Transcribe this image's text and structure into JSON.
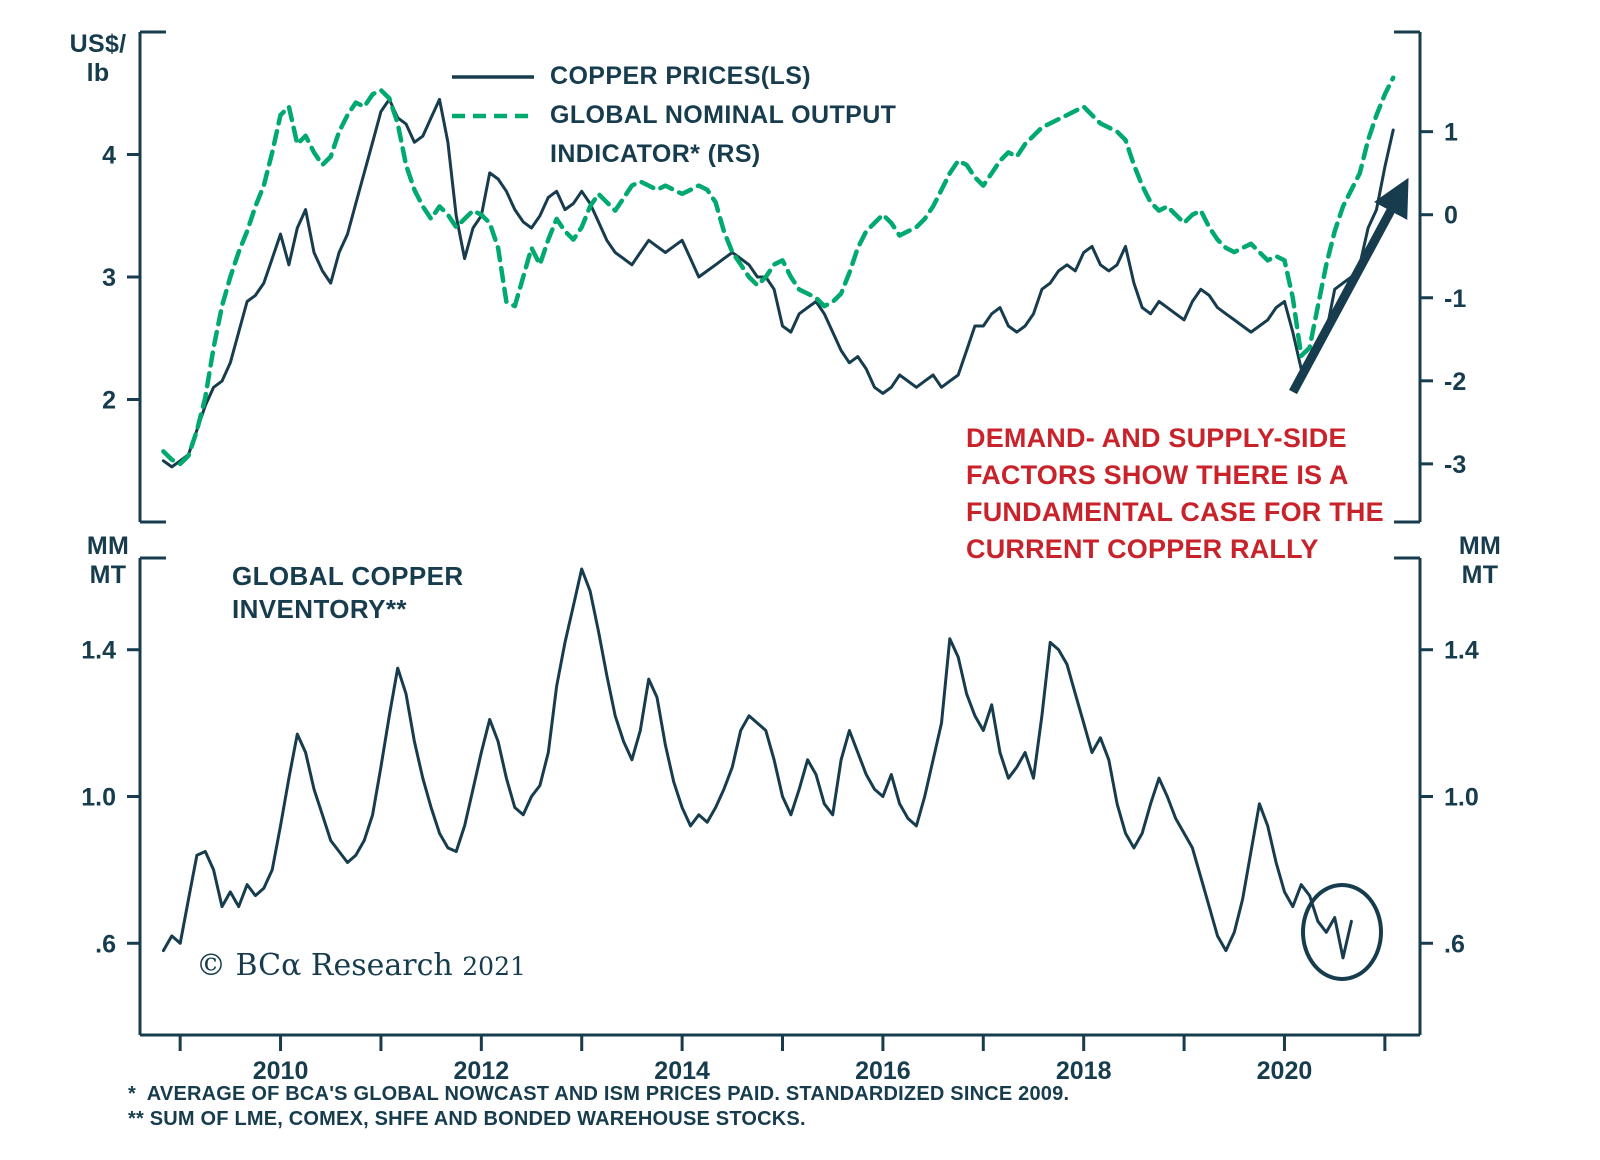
{
  "colors": {
    "navy": "#173c4d",
    "green": "#00a96e",
    "red": "#c8232b"
  },
  "axes_units": {
    "top_left": [
      "US$/",
      "lb"
    ],
    "bottom_left": [
      "MM",
      "MT"
    ],
    "bottom_right": [
      "MM",
      "MT"
    ]
  },
  "legend": {
    "copper": "COPPER PRICES(LS)",
    "output_line1": "GLOBAL NOMINAL OUTPUT",
    "output_line2": "INDICATOR* (RS)"
  },
  "inventory_label": [
    "GLOBAL COPPER",
    "INVENTORY**"
  ],
  "annotation": {
    "lines": [
      "DEMAND- AND SUPPLY-SIDE",
      "FACTORS SHOW THERE IS A",
      "FUNDAMENTAL CASE FOR THE",
      "CURRENT COPPER RALLY"
    ]
  },
  "copyright": {
    "text": "© BCα Research",
    "year": "2021"
  },
  "footnotes": [
    "*  AVERAGE OF BCA'S GLOBAL NOWCAST AND ISM PRICES PAID. STANDARDIZED SINCE 2009.",
    "** SUM OF LME, COMEX, SHFE AND BONDED WAREHOUSE STOCKS."
  ],
  "chart_data": [
    {
      "type": "line",
      "panel": "top",
      "title": "Copper prices vs global nominal output indicator",
      "x_start": 2008.8333,
      "x_step": 0.0833333,
      "xlim": [
        2008.6,
        2021.35
      ],
      "x_ticks": [
        2009,
        2010,
        2011,
        2012,
        2013,
        2014,
        2015,
        2016,
        2017,
        2018,
        2019,
        2020,
        2021
      ],
      "x_labels": [],
      "left_axis": {
        "unit": "US$/lb",
        "ticks": [
          4,
          3,
          2
        ],
        "tick_labels": [
          "4",
          "3",
          "2"
        ],
        "ylim": [
          1.0,
          5.0
        ]
      },
      "right_axis": {
        "unit": "standardized",
        "ticks": [
          1,
          0,
          -1,
          -2,
          -3
        ],
        "tick_labels": [
          "1",
          "0",
          "-1",
          "-2",
          "-3"
        ],
        "ylim": [
          -3.7,
          2.2
        ]
      },
      "series": [
        {
          "name": "COPPER PRICES(LS)",
          "axis": "left",
          "style": "solid",
          "color": "#173c4d",
          "width": 3,
          "values": [
            1.5,
            1.45,
            1.5,
            1.55,
            1.75,
            1.95,
            2.1,
            2.15,
            2.3,
            2.55,
            2.8,
            2.85,
            2.95,
            3.15,
            3.35,
            3.1,
            3.4,
            3.55,
            3.2,
            3.05,
            2.95,
            3.2,
            3.35,
            3.6,
            3.85,
            4.1,
            4.35,
            4.45,
            4.3,
            4.25,
            4.1,
            4.15,
            4.3,
            4.45,
            4.1,
            3.5,
            3.15,
            3.4,
            3.5,
            3.85,
            3.8,
            3.7,
            3.55,
            3.45,
            3.4,
            3.5,
            3.65,
            3.7,
            3.55,
            3.6,
            3.7,
            3.6,
            3.45,
            3.3,
            3.2,
            3.15,
            3.1,
            3.2,
            3.3,
            3.25,
            3.2,
            3.25,
            3.3,
            3.15,
            3.0,
            3.05,
            3.1,
            3.15,
            3.2,
            3.15,
            3.1,
            3.0,
            3.0,
            2.9,
            2.6,
            2.55,
            2.7,
            2.75,
            2.8,
            2.7,
            2.55,
            2.4,
            2.3,
            2.35,
            2.25,
            2.1,
            2.05,
            2.1,
            2.2,
            2.15,
            2.1,
            2.15,
            2.2,
            2.1,
            2.15,
            2.2,
            2.4,
            2.6,
            2.6,
            2.7,
            2.75,
            2.6,
            2.55,
            2.6,
            2.7,
            2.9,
            2.95,
            3.05,
            3.1,
            3.05,
            3.2,
            3.25,
            3.1,
            3.05,
            3.1,
            3.25,
            2.95,
            2.75,
            2.7,
            2.8,
            2.75,
            2.7,
            2.65,
            2.8,
            2.9,
            2.85,
            2.75,
            2.7,
            2.65,
            2.6,
            2.55,
            2.6,
            2.65,
            2.75,
            2.8,
            2.55,
            2.25,
            2.3,
            2.4,
            2.55,
            2.9,
            2.95,
            3.0,
            3.1,
            3.4,
            3.55,
            3.9,
            4.2
          ]
        },
        {
          "name": "GLOBAL NOMINAL OUTPUT INDICATOR* (RS)",
          "axis": "right",
          "style": "dashed",
          "color": "#00a96e",
          "width": 4.5,
          "values": [
            -2.85,
            -2.95,
            -3.0,
            -2.9,
            -2.6,
            -2.2,
            -1.6,
            -1.1,
            -0.75,
            -0.45,
            -0.2,
            0.1,
            0.35,
            0.75,
            1.2,
            1.3,
            0.85,
            0.95,
            0.75,
            0.6,
            0.7,
            1.0,
            1.2,
            1.35,
            1.3,
            1.45,
            1.5,
            1.4,
            1.1,
            0.6,
            0.3,
            0.1,
            -0.05,
            0.1,
            0.0,
            -0.15,
            -0.05,
            0.05,
            0.0,
            -0.1,
            -0.4,
            -1.05,
            -1.1,
            -0.75,
            -0.4,
            -0.6,
            -0.3,
            -0.05,
            -0.2,
            -0.3,
            -0.15,
            0.1,
            0.25,
            0.15,
            0.05,
            0.2,
            0.35,
            0.4,
            0.35,
            0.3,
            0.35,
            0.3,
            0.25,
            0.3,
            0.35,
            0.3,
            0.15,
            -0.2,
            -0.45,
            -0.6,
            -0.75,
            -0.85,
            -0.75,
            -0.6,
            -0.55,
            -0.75,
            -0.9,
            -0.95,
            -1.0,
            -1.1,
            -1.05,
            -0.95,
            -0.7,
            -0.4,
            -0.2,
            -0.1,
            0.0,
            -0.1,
            -0.25,
            -0.2,
            -0.15,
            -0.05,
            0.1,
            0.3,
            0.5,
            0.65,
            0.6,
            0.45,
            0.35,
            0.5,
            0.65,
            0.75,
            0.7,
            0.85,
            0.95,
            1.05,
            1.1,
            1.15,
            1.2,
            1.25,
            1.3,
            1.2,
            1.1,
            1.05,
            1.0,
            0.9,
            0.6,
            0.35,
            0.15,
            0.05,
            0.1,
            0.0,
            -0.1,
            0.0,
            0.05,
            -0.15,
            -0.3,
            -0.4,
            -0.45,
            -0.4,
            -0.35,
            -0.45,
            -0.55,
            -0.5,
            -0.55,
            -1.0,
            -1.7,
            -1.6,
            -1.1,
            -0.6,
            -0.2,
            0.1,
            0.3,
            0.5,
            0.9,
            1.2,
            1.45,
            1.65
          ]
        }
      ]
    },
    {
      "type": "line",
      "panel": "bottom",
      "title": "Global copper inventory",
      "x_start": 2008.8333,
      "x_step": 0.0833333,
      "xlim": [
        2008.6,
        2021.35
      ],
      "x_ticks": [
        2009,
        2010,
        2011,
        2012,
        2013,
        2014,
        2015,
        2016,
        2017,
        2018,
        2019,
        2020,
        2021
      ],
      "x_labels": [
        [
          2010,
          "2010"
        ],
        [
          2012,
          "2012"
        ],
        [
          2014,
          "2014"
        ],
        [
          2016,
          "2016"
        ],
        [
          2018,
          "2018"
        ],
        [
          2020,
          "2020"
        ]
      ],
      "left_axis": {
        "unit": "MM MT",
        "ticks": [
          1.4,
          1.0,
          0.6
        ],
        "tick_labels": [
          "1.4",
          "1.0",
          ".6"
        ],
        "ylim": [
          0.35,
          1.65
        ]
      },
      "right_axis": {
        "unit": "MM MT",
        "ticks": [
          1.4,
          1.0,
          0.6
        ],
        "tick_labels": [
          "1.4",
          "1.0",
          ".6"
        ],
        "ylim": [
          0.35,
          1.65
        ]
      },
      "series": [
        {
          "name": "GLOBAL COPPER INVENTORY**",
          "axis": "left",
          "style": "solid",
          "color": "#173c4d",
          "width": 3,
          "values": [
            0.58,
            0.62,
            0.6,
            0.72,
            0.84,
            0.85,
            0.8,
            0.7,
            0.74,
            0.7,
            0.76,
            0.73,
            0.75,
            0.8,
            0.92,
            1.05,
            1.17,
            1.12,
            1.02,
            0.95,
            0.88,
            0.85,
            0.82,
            0.84,
            0.88,
            0.95,
            1.08,
            1.22,
            1.35,
            1.28,
            1.15,
            1.05,
            0.97,
            0.9,
            0.86,
            0.85,
            0.92,
            1.02,
            1.12,
            1.21,
            1.15,
            1.05,
            0.97,
            0.95,
            1.0,
            1.03,
            1.12,
            1.3,
            1.42,
            1.52,
            1.62,
            1.56,
            1.45,
            1.33,
            1.22,
            1.15,
            1.1,
            1.18,
            1.32,
            1.27,
            1.14,
            1.04,
            0.97,
            0.92,
            0.95,
            0.93,
            0.97,
            1.02,
            1.08,
            1.18,
            1.22,
            1.2,
            1.18,
            1.1,
            1.0,
            0.95,
            1.02,
            1.1,
            1.06,
            0.98,
            0.95,
            1.1,
            1.18,
            1.12,
            1.06,
            1.02,
            1.0,
            1.06,
            0.98,
            0.94,
            0.92,
            1.0,
            1.1,
            1.2,
            1.43,
            1.38,
            1.28,
            1.22,
            1.18,
            1.25,
            1.12,
            1.05,
            1.08,
            1.12,
            1.05,
            1.22,
            1.42,
            1.4,
            1.36,
            1.28,
            1.2,
            1.12,
            1.16,
            1.1,
            0.98,
            0.9,
            0.86,
            0.9,
            0.98,
            1.05,
            1.0,
            0.94,
            0.9,
            0.86,
            0.78,
            0.7,
            0.62,
            0.58,
            0.63,
            0.72,
            0.85,
            0.98,
            0.92,
            0.82,
            0.74,
            0.7,
            0.76,
            0.73,
            0.66,
            0.63,
            0.67,
            0.56,
            0.66
          ]
        }
      ]
    }
  ]
}
